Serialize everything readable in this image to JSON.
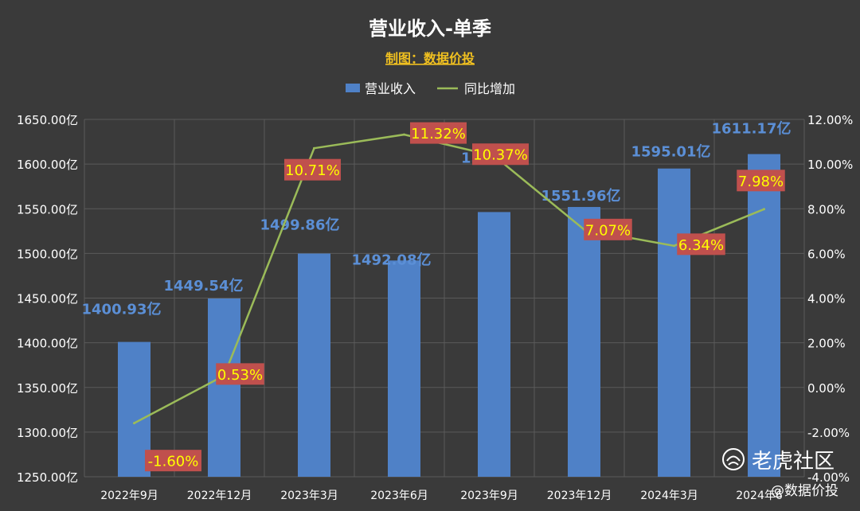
{
  "chart_data": {
    "type": "bar",
    "title": "营业收入-单季",
    "subtitle": "制图：数据价投",
    "categories": [
      "2022年9月",
      "2022年12月",
      "2023年3月",
      "2023年6月",
      "2023年9月",
      "2023年12月",
      "2024年3月",
      "2024年6月"
    ],
    "series": [
      {
        "name": "营业收入",
        "kind": "bar",
        "axis": "left",
        "values": [
          1400.93,
          1449.54,
          1499.86,
          1492.08,
          1546.3,
          1551.96,
          1595.01,
          1611.17
        ],
        "labels": [
          "1400.93亿",
          "1449.54亿",
          "1499.86亿",
          "1492.08亿",
          "1546.",
          "1551.96亿",
          "1595.01亿",
          "1611.17亿"
        ],
        "color": "#4f81c7"
      },
      {
        "name": "同比增加",
        "kind": "line",
        "axis": "right",
        "values": [
          -1.6,
          0.53,
          10.71,
          11.32,
          10.37,
          7.07,
          6.34,
          7.98
        ],
        "labels": [
          "-1.60%",
          "0.53%",
          "10.71%",
          "11.32%",
          "10.37%",
          "7.07%",
          "6.34%",
          "7.98%"
        ],
        "color": "#9bbb59"
      }
    ],
    "y_left": {
      "min": 1250,
      "max": 1650,
      "ticks": [
        "1250.00亿",
        "1300.00亿",
        "1350.00亿",
        "1400.00亿",
        "1450.00亿",
        "1500.00亿",
        "1550.00亿",
        "1600.00亿",
        "1650.00亿"
      ]
    },
    "y_right": {
      "min": -4,
      "max": 12,
      "ticks": [
        "-4.00%",
        "-2.00%",
        "0.00%",
        "2.00%",
        "4.00%",
        "6.00%",
        "8.00%",
        "10.00%",
        "12.00%"
      ]
    },
    "x_tick_labels": [
      "2022年9月",
      "2022年12月",
      "2023年3月",
      "2023年6月",
      "2023年9月",
      "2023年12月",
      "2024年3月",
      "2024年6"
    ],
    "grid": true,
    "legend_position": "top"
  },
  "watermark": {
    "brand": "老虎社区",
    "handle": "@数据价投"
  },
  "colors": {
    "background": "#3a3a3a",
    "grid": "#5a5a5a",
    "title": "#ffffff",
    "subtitle": "#f0c020",
    "bar_label": "#5b8fd6",
    "pct_box": "#c0504d",
    "pct_text": "#ffff00",
    "axis_text": "#ffffff"
  }
}
